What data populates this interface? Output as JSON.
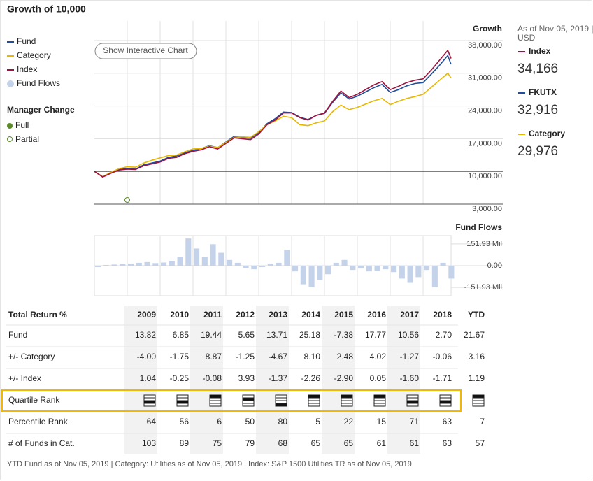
{
  "title": "Growth of 10,000",
  "button": "Show Interactive Chart",
  "manager_change": {
    "title": "Manager Change",
    "items": [
      "Full",
      "Partial"
    ]
  },
  "chart_data": [
    {
      "type": "line",
      "title": "Growth",
      "x": [
        2009,
        2009.25,
        2009.5,
        2009.75,
        2010,
        2010.25,
        2010.5,
        2010.75,
        2011,
        2011.25,
        2011.5,
        2011.75,
        2012,
        2012.25,
        2012.5,
        2012.75,
        2013,
        2013.25,
        2013.5,
        2013.75,
        2014,
        2014.25,
        2014.5,
        2014.75,
        2015,
        2015.25,
        2015.5,
        2015.75,
        2016,
        2016.25,
        2016.5,
        2016.75,
        2017,
        2017.25,
        2017.5,
        2017.75,
        2018,
        2018.25,
        2018.5,
        2018.75,
        2019,
        2019.25,
        2019.5,
        2019.75,
        2019.85
      ],
      "series": [
        {
          "name": "Fund",
          "color": "#1f4e9c",
          "values": [
            10000,
            8900,
            9700,
            10400,
            10600,
            10500,
            11400,
            11800,
            12200,
            13000,
            13300,
            14000,
            14500,
            14900,
            15500,
            15100,
            16300,
            17500,
            17300,
            17100,
            18300,
            20200,
            21300,
            22700,
            22600,
            21600,
            21100,
            22000,
            22400,
            24800,
            26800,
            25500,
            26100,
            27000,
            27900,
            28600,
            26900,
            27500,
            28300,
            28800,
            29000,
            30800,
            32700,
            34800,
            32916
          ]
        },
        {
          "name": "Category",
          "color": "#e8b700",
          "values": [
            10000,
            8900,
            9800,
            10600,
            11000,
            10900,
            11800,
            12400,
            12900,
            13400,
            13500,
            14200,
            14800,
            14900,
            15400,
            15100,
            16200,
            17300,
            17400,
            17300,
            18500,
            20000,
            20800,
            21800,
            21500,
            20000,
            19800,
            20400,
            20800,
            22800,
            24200,
            23200,
            23700,
            24400,
            25100,
            25600,
            24300,
            25000,
            25600,
            26000,
            26500,
            28000,
            29500,
            31000,
            29976
          ]
        },
        {
          "name": "Index",
          "color": "#a0123c",
          "values": [
            10000,
            8800,
            9600,
            10300,
            10500,
            10400,
            11200,
            11600,
            12000,
            12800,
            13000,
            13800,
            14300,
            14600,
            15300,
            14800,
            16000,
            17200,
            17000,
            16800,
            18000,
            20000,
            21000,
            22500,
            22500,
            21500,
            21000,
            22000,
            22500,
            25000,
            27200,
            25800,
            26500,
            27500,
            28500,
            29200,
            27500,
            28200,
            29000,
            29500,
            29800,
            31700,
            33800,
            35900,
            34166
          ]
        }
      ],
      "xlim": [
        2009,
        2019.85
      ],
      "xticks": [
        2010,
        2011,
        2012,
        2013,
        2014,
        2015,
        2016,
        2017,
        2018,
        2019
      ],
      "ylim": [
        3000,
        38000
      ],
      "yticks": [
        {
          "value": 38000,
          "label": "38,000.00"
        },
        {
          "value": 31000,
          "label": "31,000.00"
        },
        {
          "value": 24000,
          "label": "24,000.00"
        },
        {
          "value": 17000,
          "label": "17,000.00"
        },
        {
          "value": 10000,
          "label": "10,000.00"
        },
        {
          "value": 3000,
          "label": "3,000.00"
        }
      ],
      "manager_change_x": [
        2010
      ],
      "grid": true
    },
    {
      "type": "bar",
      "title": "Fund Flows",
      "x": [
        2009,
        2009.25,
        2009.5,
        2009.75,
        2010,
        2010.25,
        2010.5,
        2010.75,
        2011,
        2011.25,
        2011.5,
        2011.75,
        2012,
        2012.25,
        2012.5,
        2012.75,
        2013,
        2013.25,
        2013.5,
        2013.75,
        2014,
        2014.25,
        2014.5,
        2014.75,
        2015,
        2015.25,
        2015.5,
        2015.75,
        2016,
        2016.25,
        2016.5,
        2016.75,
        2017,
        2017.25,
        2017.5,
        2017.75,
        2018,
        2018.25,
        2018.5,
        2018.75,
        2019,
        2019.25,
        2019.5,
        2019.75
      ],
      "series": [
        {
          "name": "Fund Flows",
          "color": "#c5d3ea",
          "values": [
            -10,
            5,
            8,
            12,
            15,
            20,
            25,
            18,
            22,
            30,
            60,
            190,
            120,
            60,
            150,
            90,
            40,
            20,
            -15,
            -25,
            -10,
            10,
            20,
            110,
            -40,
            -130,
            -150,
            -100,
            -60,
            20,
            40,
            -30,
            -20,
            -40,
            -35,
            -25,
            -45,
            -90,
            -120,
            -80,
            -30,
            -150,
            20,
            -90
          ]
        }
      ],
      "xlim": [
        2009,
        2019.85
      ],
      "xticks": [
        2010,
        2011,
        2012,
        2013,
        2014,
        2015,
        2016,
        2017,
        2018,
        2019
      ],
      "ylim": [
        -210,
        210
      ],
      "yticks": [
        {
          "value": 151.93,
          "label": "151.93 Mil"
        },
        {
          "value": 0,
          "label": "0.00"
        },
        {
          "value": -151.93,
          "label": "-151.93 Mil"
        }
      ]
    }
  ],
  "summary": {
    "as_of": [
      "As of Nov 05, 2019 |",
      "USD"
    ],
    "items": [
      {
        "name": "Index",
        "value": "34,166",
        "color": "#a0123c"
      },
      {
        "name": "FKUTX",
        "value": "32,916",
        "color": "#1f4e9c"
      },
      {
        "name": "Category",
        "value": "29,976",
        "color": "#e8b700"
      }
    ]
  },
  "table": {
    "header": [
      "Total Return %",
      "2009",
      "2010",
      "2011",
      "2012",
      "2013",
      "2014",
      "2015",
      "2016",
      "2017",
      "2018",
      "YTD"
    ],
    "rows": [
      {
        "label": "Fund",
        "values": [
          "13.82",
          "6.85",
          "19.44",
          "5.65",
          "13.71",
          "25.18",
          "-7.38",
          "17.77",
          "10.56",
          "2.70",
          "21.67"
        ]
      },
      {
        "label": "+/- Category",
        "values": [
          "-4.00",
          "-1.75",
          "8.87",
          "-1.25",
          "-4.67",
          "8.10",
          "2.48",
          "4.02",
          "-1.27",
          "-0.06",
          "3.16"
        ]
      },
      {
        "label": "+/- Index",
        "values": [
          "1.04",
          "-0.25",
          "-0.08",
          "3.93",
          "-1.37",
          "-2.26",
          "-2.90",
          "0.05",
          "-1.60",
          "-1.71",
          "1.19"
        ]
      },
      {
        "label": "Quartile Rank",
        "quartiles": [
          3,
          3,
          1,
          2,
          4,
          1,
          1,
          1,
          3,
          3,
          1
        ]
      },
      {
        "label": "Percentile Rank",
        "values": [
          "64",
          "56",
          "6",
          "50",
          "80",
          "5",
          "22",
          "15",
          "71",
          "63",
          "7"
        ]
      },
      {
        "label": "# of Funds in Cat.",
        "values": [
          "103",
          "89",
          "75",
          "79",
          "68",
          "65",
          "65",
          "61",
          "61",
          "63",
          "57"
        ]
      }
    ]
  },
  "footer": "YTD Fund as of Nov 05, 2019 | Category: Utilities as of Nov 05, 2019 | Index: S&P 1500 Utilities TR as of Nov 05, 2019"
}
